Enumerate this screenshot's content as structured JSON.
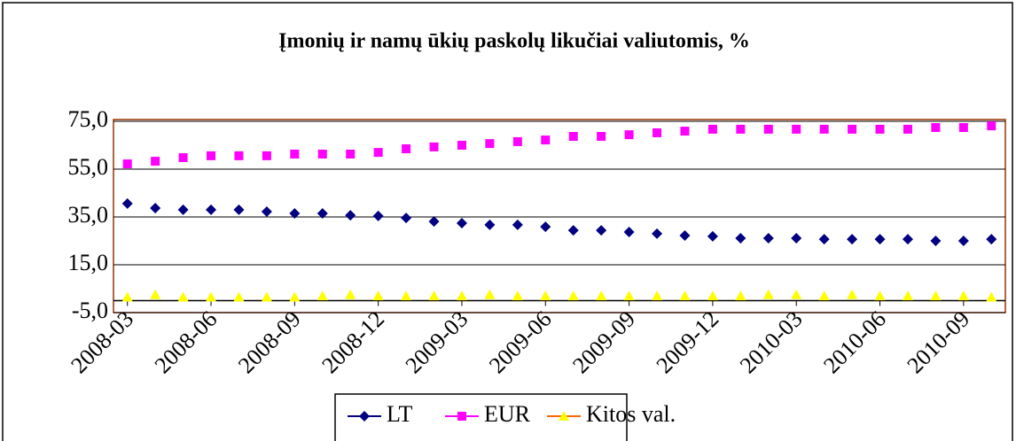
{
  "chart_data": {
    "type": "line",
    "title": "Įmonių ir namų ūkių paskolų likučiai valiutomis, %",
    "categories": [
      "2008-03",
      null,
      null,
      "2008-06",
      null,
      null,
      "2008-09",
      null,
      null,
      "2008-12",
      null,
      null,
      "2009-03",
      null,
      null,
      "2009-06",
      null,
      null,
      "2009-09",
      null,
      null,
      "2009-12",
      null,
      null,
      "2010-03",
      null,
      null,
      "2010-06",
      null,
      null,
      "2010-09",
      null
    ],
    "series": [
      {
        "name": "LT",
        "color": "#000080",
        "marker": "diamond",
        "values": [
          40.6,
          38.7,
          38.0,
          38.0,
          38.0,
          37.2,
          36.5,
          36.5,
          35.7,
          35.4,
          34.6,
          33.1,
          32.4,
          31.7,
          31.7,
          30.9,
          29.4,
          29.4,
          28.7,
          28.0,
          27.2,
          26.9,
          26.1,
          26.1,
          26.1,
          25.7,
          25.7,
          25.7,
          25.7,
          25.0,
          25.0,
          25.7
        ]
      },
      {
        "name": "EUR",
        "color": "#ff00ff",
        "marker": "square",
        "values": [
          57.2,
          58.3,
          59.8,
          60.6,
          60.6,
          60.6,
          61.3,
          61.3,
          61.3,
          62.0,
          63.5,
          64.3,
          65.0,
          65.7,
          66.5,
          67.2,
          68.7,
          68.7,
          69.4,
          70.2,
          70.9,
          71.7,
          71.7,
          71.7,
          71.7,
          71.7,
          71.7,
          71.7,
          71.7,
          72.4,
          72.4,
          73.1
        ]
      },
      {
        "name": "Kitos val.",
        "color": "#ff6600",
        "marker": "triangle",
        "markerColor": "#ffff00",
        "values": [
          1.5,
          2.5,
          1.5,
          1.5,
          1.5,
          1.5,
          1.5,
          2.0,
          2.5,
          2.0,
          2.0,
          2.0,
          2.0,
          2.5,
          2.0,
          2.0,
          2.0,
          2.0,
          2.0,
          2.0,
          2.0,
          2.0,
          2.0,
          2.5,
          2.5,
          2.0,
          2.5,
          2.0,
          2.0,
          2.0,
          2.0,
          1.5
        ]
      }
    ],
    "ylim": [
      -5,
      75
    ],
    "yticks": [
      {
        "value": -5,
        "label": "-5,0"
      },
      {
        "value": 15,
        "label": "15,0"
      },
      {
        "value": 35,
        "label": "35,0"
      },
      {
        "value": 55,
        "label": "55,0"
      },
      {
        "value": 75,
        "label": "75,0"
      }
    ],
    "grid": true,
    "legend": "bottom"
  }
}
